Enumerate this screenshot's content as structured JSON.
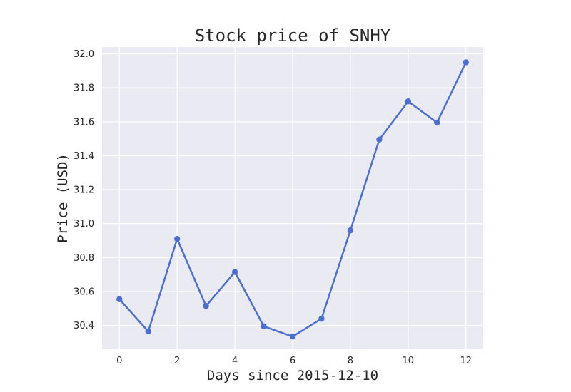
{
  "chart_data": {
    "type": "line",
    "title": "Stock price of SNHY",
    "xlabel": "Days since 2015-12-10",
    "ylabel": "Price (USD)",
    "x": [
      0,
      1,
      2,
      3,
      4,
      5,
      6,
      7,
      8,
      9,
      10,
      11,
      12
    ],
    "series": [
      {
        "values": [
          30.555,
          30.365,
          30.91,
          30.515,
          30.715,
          30.395,
          30.335,
          30.44,
          30.96,
          31.495,
          31.72,
          31.595,
          31.95
        ]
      }
    ],
    "xlim": [
      -0.6,
      12.6
    ],
    "ylim": [
      30.26,
      32.04
    ],
    "xticks": [
      "0",
      "2",
      "4",
      "6",
      "8",
      "10",
      "12"
    ],
    "yticks": [
      "30.4",
      "30.6",
      "30.8",
      "31.0",
      "31.2",
      "31.4",
      "31.6",
      "31.8",
      "32.0"
    ],
    "grid": true,
    "colors": {
      "background": "#eaeaf2",
      "grid": "#ffffff",
      "line": "#4c6fcf"
    }
  }
}
